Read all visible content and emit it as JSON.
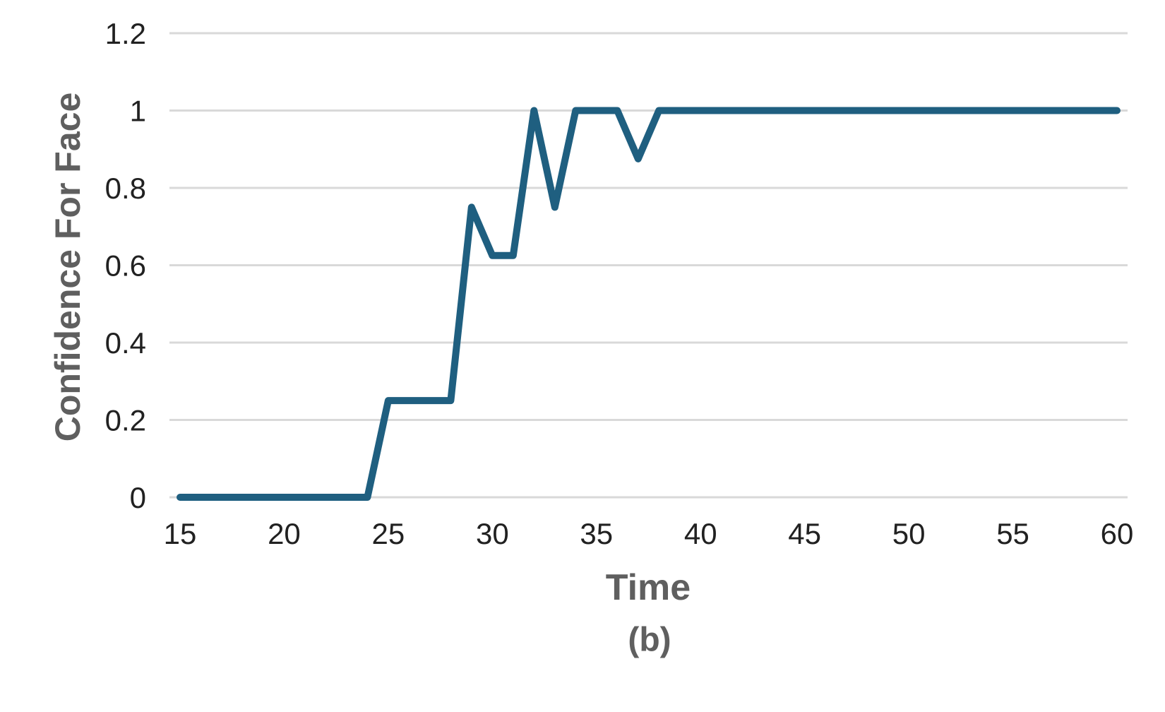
{
  "chart_data": {
    "type": "line",
    "title": "",
    "xlabel": "Time",
    "ylabel": "Confidence For Face",
    "caption": "(b)",
    "xlim": [
      15,
      60
    ],
    "ylim": [
      0,
      1.2
    ],
    "x_ticks": [
      15,
      20,
      25,
      30,
      35,
      40,
      45,
      50,
      55,
      60
    ],
    "y_ticks": [
      0,
      0.2,
      0.4,
      0.6,
      0.8,
      1,
      1.2
    ],
    "grid": "horizontal",
    "legend": "none",
    "x": [
      15,
      16,
      17,
      18,
      19,
      20,
      21,
      22,
      23,
      24,
      25,
      26,
      27,
      28,
      29,
      30,
      31,
      32,
      33,
      34,
      35,
      36,
      37,
      38,
      39,
      40,
      41,
      42,
      43,
      44,
      45,
      46,
      47,
      48,
      49,
      50,
      51,
      52,
      53,
      54,
      55,
      56,
      57,
      58,
      59,
      60
    ],
    "series": [
      {
        "name": "Confidence For Face",
        "values": [
          0,
          0,
          0,
          0,
          0,
          0,
          0,
          0,
          0,
          0,
          0.25,
          0.25,
          0.25,
          0.25,
          0.75,
          0.625,
          0.625,
          1,
          0.75,
          1,
          1,
          1,
          0.875,
          1,
          1,
          1,
          1,
          1,
          1,
          1,
          1,
          1,
          1,
          1,
          1,
          1,
          1,
          1,
          1,
          1,
          1,
          1,
          1,
          1,
          1,
          1
        ]
      }
    ],
    "colors": {
      "line": "#1f5f80",
      "grid": "#d9d9d9",
      "tick_label": "#212121",
      "axis_title": "#5f5f5f",
      "background": "#ffffff"
    },
    "line_width": 10
  }
}
